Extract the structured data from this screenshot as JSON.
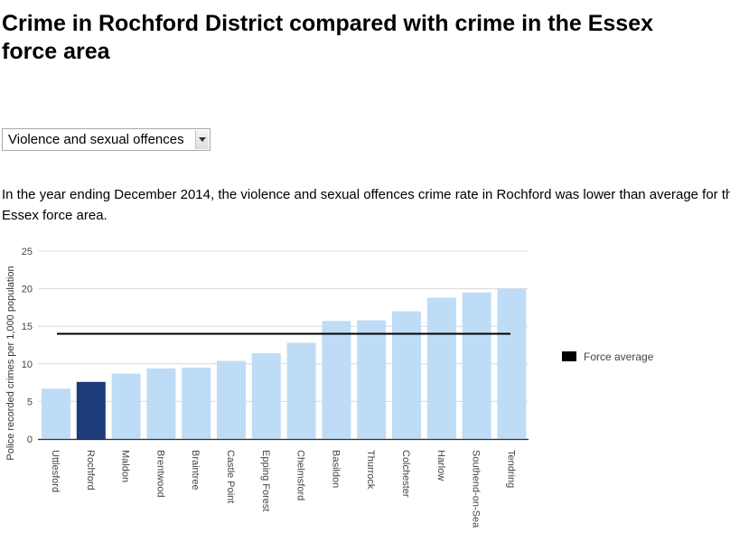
{
  "page": {
    "title_line1": "Crime in Rochford District compared with crime in the Essex",
    "title_line2": "force area"
  },
  "select": {
    "selected": "Violence and sexual offences",
    "icon": "chevron-down-icon"
  },
  "summary": {
    "line1": "In the year ending December 2014, the violence and sexual offences crime rate in Rochford was lower than average for th",
    "line2": "Essex force area."
  },
  "colors": {
    "bar": "#bfdcf7",
    "highlight_bar": "#1d3a7b",
    "average_line": "#000000",
    "gridline": "#d9d9d9",
    "axis_text": "#444444"
  },
  "chart_data": {
    "type": "bar",
    "title": "",
    "xlabel": "",
    "ylabel": "Police recorded crimes per 1,000 population",
    "ylim": [
      0,
      25
    ],
    "yticks": [
      0,
      5,
      10,
      15,
      20,
      25
    ],
    "grid": true,
    "categories": [
      "Uttlesford",
      "Rochford",
      "Maldon",
      "Brentwood",
      "Braintree",
      "Castle Point",
      "Epping Forest",
      "Chelmsford",
      "Basildon",
      "Thurrock",
      "Colchester",
      "Harlow",
      "Southend-on-Sea",
      "Tendring"
    ],
    "values": [
      6.7,
      7.6,
      8.7,
      9.4,
      9.5,
      10.4,
      11.4,
      12.8,
      15.7,
      15.8,
      17.0,
      18.8,
      19.5,
      20.0
    ],
    "highlight": "Rochford",
    "force_average": 14.0,
    "legend": {
      "label": "Force average",
      "placement": "right"
    }
  }
}
